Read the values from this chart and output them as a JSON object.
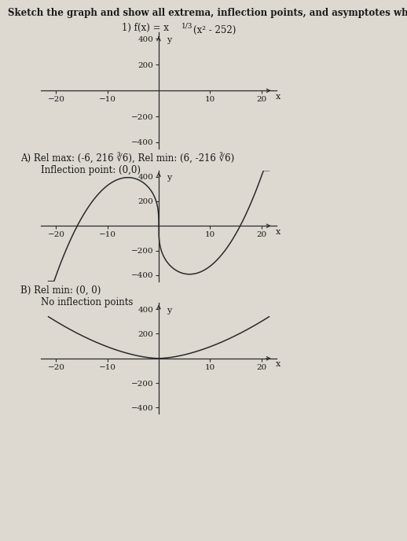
{
  "title_line1": "Sketch the graph and show all extrema, inflection points, and asymptotes where applicable.",
  "problem_base": "1) f(x) = x",
  "problem_exp": "1/3",
  "problem_rest": "(x² - 252)",
  "answer_A_line1": "A) Rel max: (-6, 216 ∛6), Rel min: (6, -216 ∛6)",
  "answer_A_line2": "Inflection point: (0,0)",
  "answer_B_line1": "B) Rel min: (0, 0)",
  "answer_B_line2": "No inflection points",
  "xlim": [
    -23,
    23
  ],
  "ylim": [
    -450,
    450
  ],
  "xticks": [
    -20,
    -10,
    10,
    20
  ],
  "yticks": [
    -400,
    -200,
    200,
    400
  ],
  "bg_color": "#ddd9d0",
  "curve_color": "#2a2a2a",
  "axis_color": "#2a2a2a",
  "text_color": "#1a1a1a",
  "font_size_title": 8.5,
  "font_size_label": 8.5,
  "font_size_tick": 7.5
}
